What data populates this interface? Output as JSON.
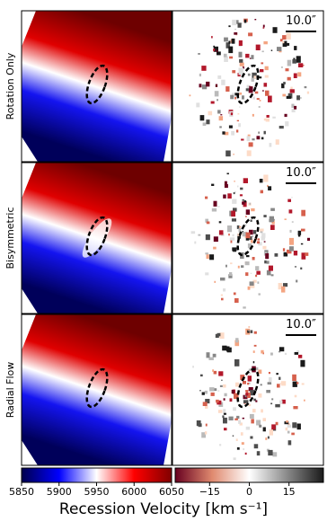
{
  "figure": {
    "rows": [
      {
        "label": "Rotation Only"
      },
      {
        "label": "Bisymmetric"
      },
      {
        "label": "Radial Flow"
      }
    ],
    "scale_bar_label": "10.0″",
    "colorbars": [
      {
        "lim": [
          5850,
          6050
        ],
        "ticks": [
          5850,
          5900,
          5950,
          6000,
          6050
        ]
      },
      {
        "lim": [
          -28,
          28
        ],
        "ticks": [
          {
            "value": -15,
            "label": "−15"
          },
          0,
          15
        ]
      }
    ],
    "xlabel": "Recession Velocity [km s⁻¹]"
  }
}
